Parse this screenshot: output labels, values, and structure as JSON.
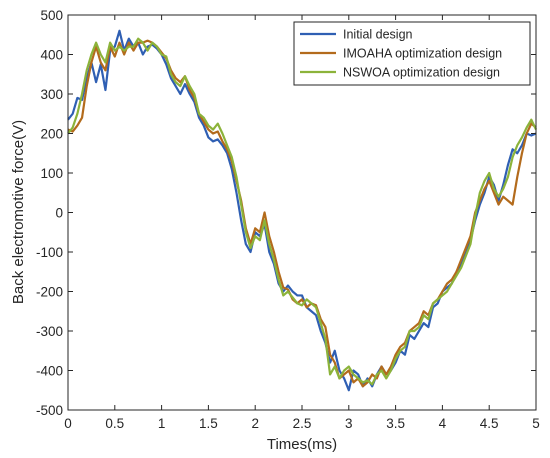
{
  "chart_data": {
    "type": "line",
    "title": "",
    "xlabel": "Times(ms)",
    "ylabel": "Back electromotive force(V)",
    "xlim": [
      0,
      5
    ],
    "ylim": [
      -500,
      500
    ],
    "xticks": [
      0,
      0.5,
      1,
      1.5,
      2,
      2.5,
      3,
      3.5,
      4,
      4.5,
      5
    ],
    "yticks": [
      -500,
      -400,
      -300,
      -200,
      -100,
      0,
      100,
      200,
      300,
      400,
      500
    ],
    "xtick_labels": [
      "0",
      "0.5",
      "1",
      "1.5",
      "2",
      "2.5",
      "3",
      "3.5",
      "4",
      "4.5",
      "5"
    ],
    "ytick_labels": [
      "-500",
      "-400",
      "-300",
      "-200",
      "-100",
      "0",
      "100",
      "200",
      "300",
      "400",
      "500"
    ],
    "grid": false,
    "legend_position": "top-right",
    "series": [
      {
        "name": "Initial design",
        "color": "#2f5fb3",
        "x": [
          0,
          0.05,
          0.1,
          0.15,
          0.2,
          0.25,
          0.3,
          0.35,
          0.4,
          0.45,
          0.5,
          0.55,
          0.6,
          0.65,
          0.7,
          0.75,
          0.8,
          0.85,
          0.9,
          0.95,
          1,
          1.05,
          1.1,
          1.15,
          1.2,
          1.25,
          1.3,
          1.35,
          1.4,
          1.45,
          1.5,
          1.55,
          1.6,
          1.65,
          1.7,
          1.75,
          1.8,
          1.85,
          1.9,
          1.95,
          2,
          2.05,
          2.1,
          2.15,
          2.2,
          2.25,
          2.3,
          2.35,
          2.4,
          2.45,
          2.5,
          2.55,
          2.6,
          2.65,
          2.7,
          2.75,
          2.8,
          2.85,
          2.9,
          2.95,
          3,
          3.05,
          3.1,
          3.15,
          3.2,
          3.25,
          3.3,
          3.35,
          3.4,
          3.45,
          3.5,
          3.55,
          3.6,
          3.65,
          3.7,
          3.75,
          3.8,
          3.85,
          3.9,
          3.95,
          4,
          4.05,
          4.1,
          4.15,
          4.2,
          4.25,
          4.3,
          4.35,
          4.4,
          4.45,
          4.5,
          4.55,
          4.6,
          4.65,
          4.7,
          4.75,
          4.8,
          4.85,
          4.9,
          4.95,
          5
        ],
        "values": [
          235,
          250,
          290,
          285,
          340,
          380,
          330,
          375,
          310,
          410,
          420,
          460,
          410,
          440,
          420,
          430,
          400,
          420,
          425,
          415,
          400,
          375,
          340,
          320,
          300,
          325,
          300,
          280,
          240,
          220,
          190,
          180,
          185,
          170,
          150,
          110,
          50,
          -20,
          -80,
          -100,
          -50,
          -60,
          -30,
          -100,
          -130,
          -180,
          -200,
          -185,
          -200,
          -210,
          -210,
          -240,
          -250,
          -260,
          -300,
          -330,
          -380,
          -350,
          -400,
          -420,
          -450,
          -400,
          -410,
          -440,
          -420,
          -440,
          -410,
          -390,
          -410,
          -400,
          -380,
          -350,
          -360,
          -310,
          -320,
          -300,
          -280,
          -290,
          -240,
          -230,
          -200,
          -190,
          -180,
          -150,
          -130,
          -100,
          -70,
          -20,
          20,
          50,
          90,
          70,
          30,
          70,
          120,
          160,
          150,
          170,
          200,
          195,
          200
        ]
      },
      {
        "name": "IMOAHA optimization design",
        "color": "#b36b1c",
        "x": [
          0,
          0.05,
          0.1,
          0.15,
          0.2,
          0.25,
          0.3,
          0.35,
          0.4,
          0.45,
          0.5,
          0.55,
          0.6,
          0.65,
          0.7,
          0.75,
          0.8,
          0.85,
          0.9,
          0.95,
          1,
          1.05,
          1.1,
          1.15,
          1.2,
          1.25,
          1.3,
          1.35,
          1.4,
          1.45,
          1.5,
          1.55,
          1.6,
          1.65,
          1.7,
          1.75,
          1.8,
          1.85,
          1.9,
          1.95,
          2,
          2.05,
          2.1,
          2.15,
          2.2,
          2.25,
          2.3,
          2.35,
          2.4,
          2.45,
          2.5,
          2.55,
          2.6,
          2.65,
          2.7,
          2.75,
          2.8,
          2.85,
          2.9,
          2.95,
          3,
          3.05,
          3.1,
          3.15,
          3.2,
          3.25,
          3.3,
          3.35,
          3.4,
          3.45,
          3.5,
          3.55,
          3.6,
          3.65,
          3.7,
          3.75,
          3.8,
          3.85,
          3.9,
          3.95,
          4,
          4.05,
          4.1,
          4.15,
          4.2,
          4.25,
          4.3,
          4.35,
          4.4,
          4.45,
          4.5,
          4.55,
          4.6,
          4.65,
          4.7,
          4.75,
          4.8,
          4.85,
          4.9,
          4.95,
          5
        ],
        "values": [
          210,
          205,
          220,
          240,
          320,
          380,
          420,
          380,
          360,
          420,
          395,
          430,
          400,
          430,
          410,
          430,
          430,
          435,
          430,
          420,
          405,
          390,
          360,
          340,
          330,
          345,
          310,
          290,
          250,
          230,
          210,
          200,
          205,
          180,
          160,
          130,
          80,
          30,
          -40,
          -80,
          -40,
          -50,
          0,
          -60,
          -100,
          -150,
          -190,
          -195,
          -220,
          -230,
          -220,
          -240,
          -230,
          -235,
          -270,
          -290,
          -360,
          -380,
          -420,
          -410,
          -400,
          -430,
          -420,
          -440,
          -430,
          -410,
          -420,
          -390,
          -410,
          -390,
          -360,
          -340,
          -330,
          -300,
          -290,
          -280,
          -250,
          -260,
          -230,
          -220,
          -200,
          -180,
          -170,
          -150,
          -120,
          -90,
          -60,
          0,
          30,
          60,
          80,
          50,
          20,
          40,
          30,
          20,
          90,
          150,
          200,
          225,
          215
        ]
      },
      {
        "name": "NSWOA optimization design",
        "color": "#8cb33a",
        "x": [
          0,
          0.05,
          0.1,
          0.15,
          0.2,
          0.25,
          0.3,
          0.35,
          0.4,
          0.45,
          0.5,
          0.55,
          0.6,
          0.65,
          0.7,
          0.75,
          0.8,
          0.85,
          0.9,
          0.95,
          1,
          1.05,
          1.1,
          1.15,
          1.2,
          1.25,
          1.3,
          1.35,
          1.4,
          1.45,
          1.5,
          1.55,
          1.6,
          1.65,
          1.7,
          1.75,
          1.8,
          1.85,
          1.9,
          1.95,
          2,
          2.05,
          2.1,
          2.15,
          2.2,
          2.25,
          2.3,
          2.35,
          2.4,
          2.45,
          2.5,
          2.55,
          2.6,
          2.65,
          2.7,
          2.75,
          2.8,
          2.85,
          2.9,
          2.95,
          3,
          3.05,
          3.1,
          3.15,
          3.2,
          3.25,
          3.3,
          3.35,
          3.4,
          3.45,
          3.5,
          3.55,
          3.6,
          3.65,
          3.7,
          3.75,
          3.8,
          3.85,
          3.9,
          3.95,
          4,
          4.05,
          4.1,
          4.15,
          4.2,
          4.25,
          4.3,
          4.35,
          4.4,
          4.45,
          4.5,
          4.55,
          4.6,
          4.65,
          4.7,
          4.75,
          4.8,
          4.85,
          4.9,
          4.95,
          5
        ],
        "values": [
          200,
          215,
          250,
          300,
          360,
          400,
          430,
          400,
          380,
          430,
          410,
          420,
          410,
          420,
          420,
          440,
          430,
          410,
          430,
          420,
          400,
          395,
          350,
          330,
          320,
          345,
          320,
          300,
          250,
          240,
          220,
          210,
          225,
          200,
          170,
          140,
          90,
          20,
          -50,
          -90,
          -60,
          -70,
          -20,
          -80,
          -120,
          -170,
          -210,
          -200,
          -215,
          -230,
          -235,
          -220,
          -230,
          -240,
          -280,
          -320,
          -410,
          -390,
          -420,
          -400,
          -390,
          -410,
          -420,
          -430,
          -425,
          -435,
          -410,
          -400,
          -420,
          -400,
          -370,
          -350,
          -340,
          -300,
          -300,
          -290,
          -260,
          -270,
          -230,
          -220,
          -210,
          -200,
          -180,
          -160,
          -140,
          -110,
          -80,
          -10,
          50,
          80,
          100,
          60,
          40,
          60,
          90,
          140,
          170,
          190,
          215,
          235,
          210
        ]
      }
    ]
  }
}
